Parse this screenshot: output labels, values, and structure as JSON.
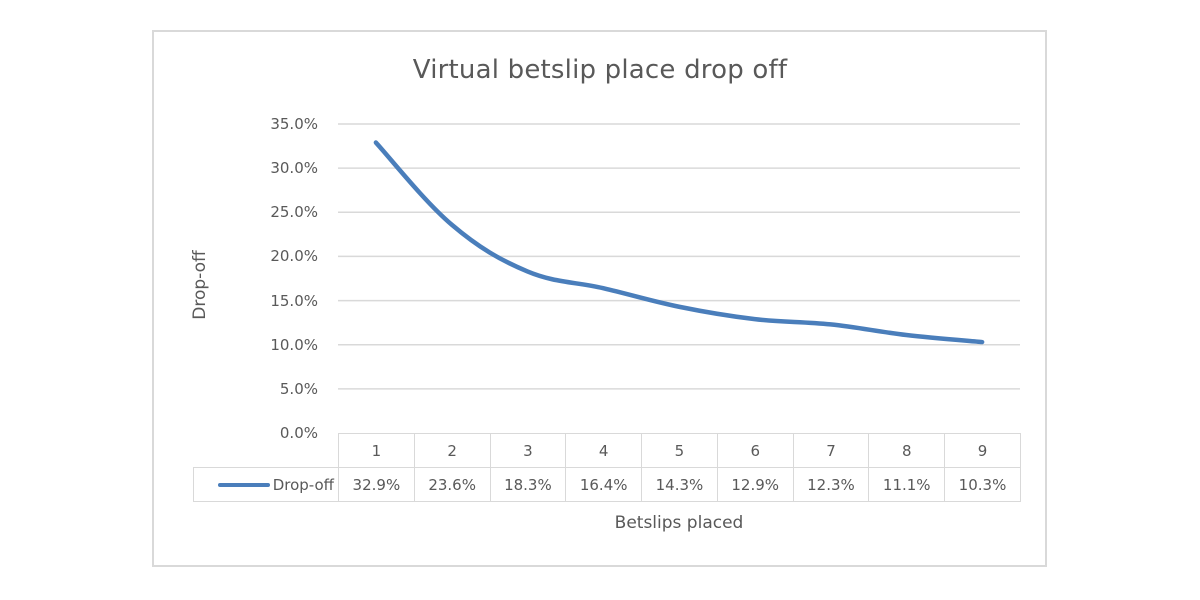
{
  "chart_data": {
    "type": "line",
    "title": "Virtual betslip place drop off",
    "xlabel": "Betslips placed",
    "ylabel": "Drop-off",
    "categories": [
      "1",
      "2",
      "3",
      "4",
      "5",
      "6",
      "7",
      "8",
      "9"
    ],
    "series": [
      {
        "name": "Drop-off",
        "values": [
          32.9,
          23.6,
          18.3,
          16.4,
          14.3,
          12.9,
          12.3,
          11.1,
          10.3
        ],
        "labels": [
          "32.9%",
          "23.6%",
          "18.3%",
          "16.4%",
          "14.3%",
          "12.9%",
          "12.3%",
          "11.1%",
          "10.3%"
        ],
        "color": "#4a7ebb"
      }
    ],
    "yticks": [
      "0.0%",
      "5.0%",
      "10.0%",
      "15.0%",
      "20.0%",
      "25.0%",
      "30.0%",
      "35.0%"
    ],
    "ylim": [
      0,
      35
    ],
    "grid": true,
    "legend_position": "data-table",
    "data_table": true
  },
  "colors": {
    "line": "#4a7ebb",
    "grid": "#d9d9d9",
    "text": "#595959",
    "frame": "#d9d9d9"
  }
}
